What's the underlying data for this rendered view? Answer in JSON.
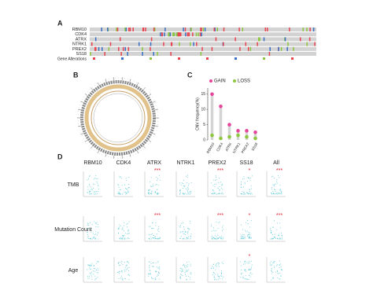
{
  "panel_a": {
    "label": "A",
    "genes": [
      "RBM10",
      "CDK4",
      "ATRX",
      "NTRK1",
      "PREX2",
      "SS18"
    ],
    "legend_title": "Gene Alterations"
  },
  "panel_b": {
    "label": "B"
  },
  "chart_data": {
    "type": "lollipop",
    "panel_label": "C",
    "categories": [
      "RBM10",
      "CDK4",
      "ATRX",
      "NTRK1",
      "PREX2",
      "SS18"
    ],
    "series": [
      {
        "name": "GAIN",
        "color": "#e5469c",
        "values": [
          15,
          11,
          5,
          3,
          3,
          2.5
        ]
      },
      {
        "name": "LOSS",
        "color": "#8dc63f",
        "values": [
          1.5,
          0.5,
          1,
          1.5,
          1,
          0.5
        ]
      }
    ],
    "ylabel": "CNV frequency(%)",
    "ylim": [
      0,
      17
    ],
    "yticks": [
      0,
      5,
      10,
      15
    ],
    "stem_color": "#d4d4d4"
  },
  "panel_d": {
    "label": "D",
    "columns": [
      "RBM10",
      "CDK4",
      "ATRX",
      "NTRK1",
      "PREX2",
      "SS18",
      "All"
    ],
    "rows": [
      "TMB",
      "Mutation Count",
      "Age"
    ],
    "significance": [
      [
        null,
        null,
        "***",
        null,
        "***",
        "*",
        "***"
      ],
      [
        null,
        null,
        "***",
        null,
        "***",
        "*",
        "***"
      ],
      [
        null,
        null,
        null,
        null,
        null,
        "*",
        null
      ]
    ],
    "star_color": "#e0202c",
    "point_color": "#5bc8d6"
  }
}
